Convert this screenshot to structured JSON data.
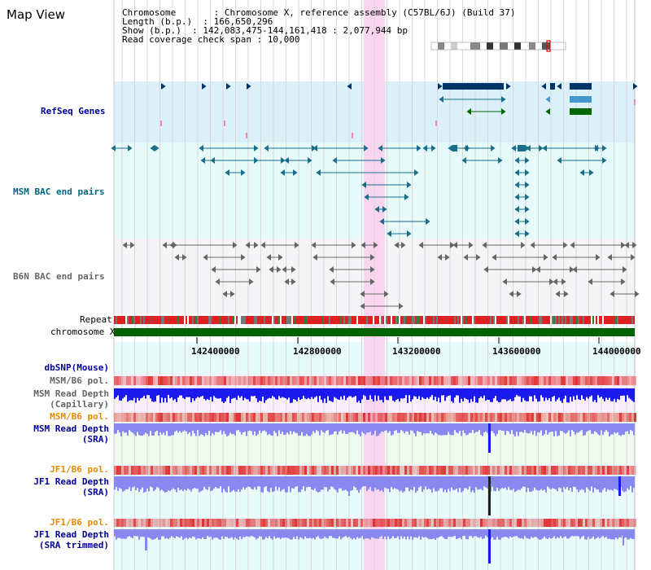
{
  "panel_title": "Map View",
  "info": {
    "chromosome": "Chromosome       : Chromosome X, reference assembly (C57BL/6J) (Build 37)",
    "length": "Length (b.p.)  : 166,650,296",
    "show": "Show (b.p.)  : 142,083,475-144,161,418 : 2,077,944 bp",
    "coverage": "Read coverage check span : 10,000"
  },
  "tracks": {
    "refseq": "RefSeq Genes",
    "msm_bac": "MSM BAC end pairs",
    "b6n_bac": "B6N BAC end pairs",
    "repeat": "Repeat",
    "chromosome": "chromosome X",
    "dbsnp": "dbSNP(Mouse)",
    "msm_pol1": "MSM/B6 pol.",
    "msm_depth_cap": "MSM Read Depth\n(Capillary)",
    "msm_pol2": "MSM/B6 pol.",
    "msm_depth_sra": "MSM Read Depth\n(SRA)",
    "jf1_pol1": "JF1/B6 pol.",
    "jf1_depth_sra": "JF1 Read Depth\n(SRA)",
    "jf1_pol2": "JF1/B6 pol.",
    "jf1_depth_trim": "JF1 Read Depth\n(SRA trimmed)"
  },
  "axis_ticks": [
    "142400000",
    "142800000",
    "143200000",
    "143600000",
    "144000000"
  ],
  "colors": {
    "refseq_bg": "#dcf0fa",
    "msm_bg": "#e6fafa",
    "b6n_bg": "#f5f5f8",
    "highlight": "#f9d5ef",
    "chromosome_bar": "#006400",
    "depth_blue": "#1a1aee",
    "depth_light": "#8888f0",
    "refseq_dark": "#003366",
    "refseq_mid": "#4499cc",
    "refseq_green": "#006600",
    "msm_feature": "#1a6e8a",
    "b6n_feature": "#666666",
    "pol_red": "#e05050",
    "label_blue": "#000099",
    "label_teal": "#006680",
    "label_gray": "#666666",
    "label_orange": "#e68a00"
  }
}
